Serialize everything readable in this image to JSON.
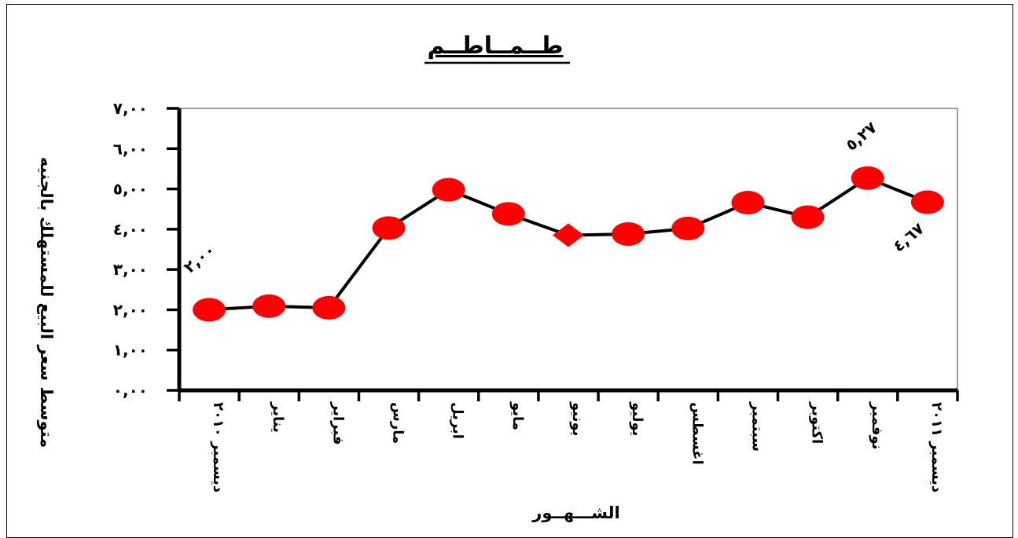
{
  "chart_data": {
    "type": "line",
    "title": "طــمــاطــم",
    "xlabel": "الشـــهــور",
    "ylabel": "متوسط سعر البيع للمستهلك بالجنيه",
    "ylim": [
      0,
      7
    ],
    "yticks": [
      {
        "value": 0,
        "label": "٠,٠٠"
      },
      {
        "value": 1,
        "label": "١,٠٠"
      },
      {
        "value": 2,
        "label": "٢,٠٠"
      },
      {
        "value": 3,
        "label": "٣,٠٠"
      },
      {
        "value": 4,
        "label": "٤,٠٠"
      },
      {
        "value": 5,
        "label": "٥,٠٠"
      },
      {
        "value": 6,
        "label": "٦,٠٠"
      },
      {
        "value": 7,
        "label": "٧,٠٠"
      }
    ],
    "categories": [
      "ديسمبر ٢٠١٠",
      "يناير",
      "فبراير",
      "مارس",
      "ابريل",
      "مايو",
      "يونيو",
      "يوليو",
      "اغسطس",
      "سبتمبر",
      "اكتوبر",
      "نوفمبر",
      "ديسمبر ٢٠١١"
    ],
    "series": [
      {
        "values": [
          2.0,
          2.09,
          2.05,
          4.03,
          4.98,
          4.38,
          3.85,
          3.88,
          4.02,
          4.66,
          4.3,
          5.27,
          4.67
        ],
        "markers": [
          "circle",
          "circle",
          "circle",
          "circle",
          "circle",
          "circle",
          "diamond",
          "circle",
          "circle",
          "circle",
          "circle",
          "circle",
          "circle"
        ],
        "color": "#000000",
        "marker_color": "#ff0000"
      }
    ],
    "data_labels": [
      {
        "index": 0,
        "text": "٢,٠٠"
      },
      {
        "index": 11,
        "text": "٥,٢٧"
      },
      {
        "index": 12,
        "text": "٤,٦٧"
      }
    ],
    "grid": false,
    "legend": "none"
  }
}
